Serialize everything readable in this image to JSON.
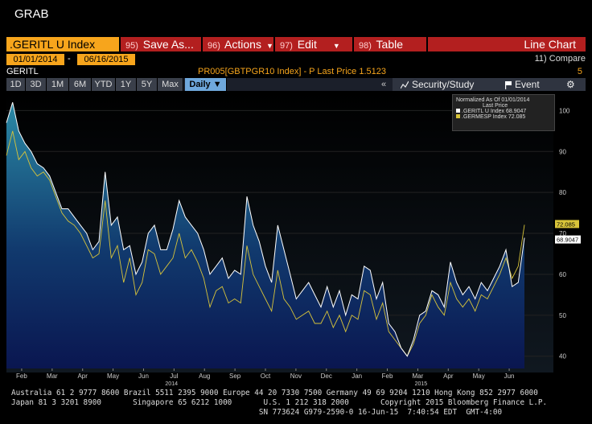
{
  "app_title": "GRAB",
  "command_bar": {
    "security": ".GERITL U Index",
    "save_num": "95)",
    "save_label": "Save As...",
    "actions_num": "96)",
    "actions_label": "Actions",
    "edit_num": "97)",
    "edit_label": "Edit",
    "table_num": "98)",
    "table_label": "Table",
    "view_label": "Line Chart"
  },
  "dates": {
    "start": "01/01/2014",
    "separator": "-",
    "end": "06/16/2015",
    "compare": "11) Compare"
  },
  "info_row": {
    "ticker": "GERITL",
    "formula": "PR005[GBTPGR10 Index] -     P     Last Price 1.5123",
    "page": "5"
  },
  "range_buttons": [
    "1D",
    "3D",
    "1M",
    "6M",
    "YTD",
    "1Y",
    "5Y",
    "Max"
  ],
  "frequency": "Daily",
  "security_study": "Security/Study",
  "event": "Event",
  "legend": {
    "header1": "Normalized As Of 01/01/2014",
    "header2": "Last Price",
    "series1": ".GERITL U Index 68.9047",
    "series2": ".GERMESP Index 72.085"
  },
  "colors": {
    "orange": "#f7a51c",
    "red_button": "#b31f1f",
    "series1": "#ffffff",
    "series2": "#d8c43a",
    "area_top": "#1f6f8a"
  },
  "chart_data": {
    "type": "line",
    "ylim": [
      37,
      104
    ],
    "yticks": [
      40,
      50,
      60,
      70,
      80,
      90,
      100
    ],
    "xticks": [
      "Feb",
      "Mar",
      "Apr",
      "May",
      "Jun",
      "Jul",
      "Aug",
      "Sep",
      "Oct",
      "Nov",
      "Dec",
      "Jan",
      "Feb",
      "Mar",
      "Apr",
      "May",
      "Jun"
    ],
    "year_labels": [
      "2014",
      "2015"
    ],
    "last_value_labels": [
      "72.085",
      "68.9047"
    ],
    "series": [
      {
        "name": ".GERITL U Index",
        "values": [
          97,
          102,
          95,
          92,
          90,
          87,
          86,
          84,
          80,
          76,
          76,
          74,
          72,
          70,
          66,
          68,
          85,
          72,
          74,
          66,
          67,
          60,
          63,
          70,
          72,
          66,
          66,
          71,
          78,
          74,
          72,
          70,
          66,
          60,
          62,
          64,
          59,
          61,
          60,
          79,
          72,
          68,
          62,
          58,
          72,
          66,
          60,
          54,
          56,
          58,
          55,
          52,
          57,
          52,
          56,
          50,
          55,
          54,
          62,
          61,
          54,
          58,
          48,
          46,
          42,
          40,
          44,
          50,
          51,
          56,
          55,
          52,
          63,
          58,
          55,
          57,
          54,
          58,
          56,
          59,
          62,
          66,
          57,
          58,
          68.9
        ]
      },
      {
        "name": ".GERMESP Index",
        "values": [
          89,
          95,
          88,
          90,
          86,
          84,
          85,
          83,
          79,
          75,
          73,
          72,
          70,
          67,
          64,
          65,
          78,
          64,
          67,
          58,
          64,
          55,
          58,
          66,
          65,
          60,
          62,
          64,
          70,
          64,
          66,
          63,
          59,
          52,
          56,
          57,
          53,
          54,
          53,
          67,
          60,
          57,
          54,
          51,
          61,
          54,
          52,
          49,
          50,
          51,
          48,
          48,
          51,
          47,
          50,
          46,
          50,
          49,
          56,
          55,
          49,
          53,
          46,
          44,
          42,
          40,
          43,
          48,
          50,
          55,
          52,
          50,
          58,
          54,
          52,
          54,
          51,
          55,
          54,
          57,
          60,
          64,
          59,
          62,
          72.085
        ]
      }
    ]
  },
  "footer": {
    "line1": "Australia 61 2 9777 8600 Brazil 5511 2395 9000 Europe 44 20 7330 7500 Germany 49 69 9204 1210 Hong Kong 852 2977 6000",
    "line2": "Japan 81 3 3201 8900       Singapore 65 6212 1000       U.S. 1 212 318 2000       Copyright 2015 Bloomberg Finance L.P.",
    "line3": "                                                       SN 773624 G979-2590-0 16-Jun-15  7:40:54 EDT  GMT-4:00"
  }
}
